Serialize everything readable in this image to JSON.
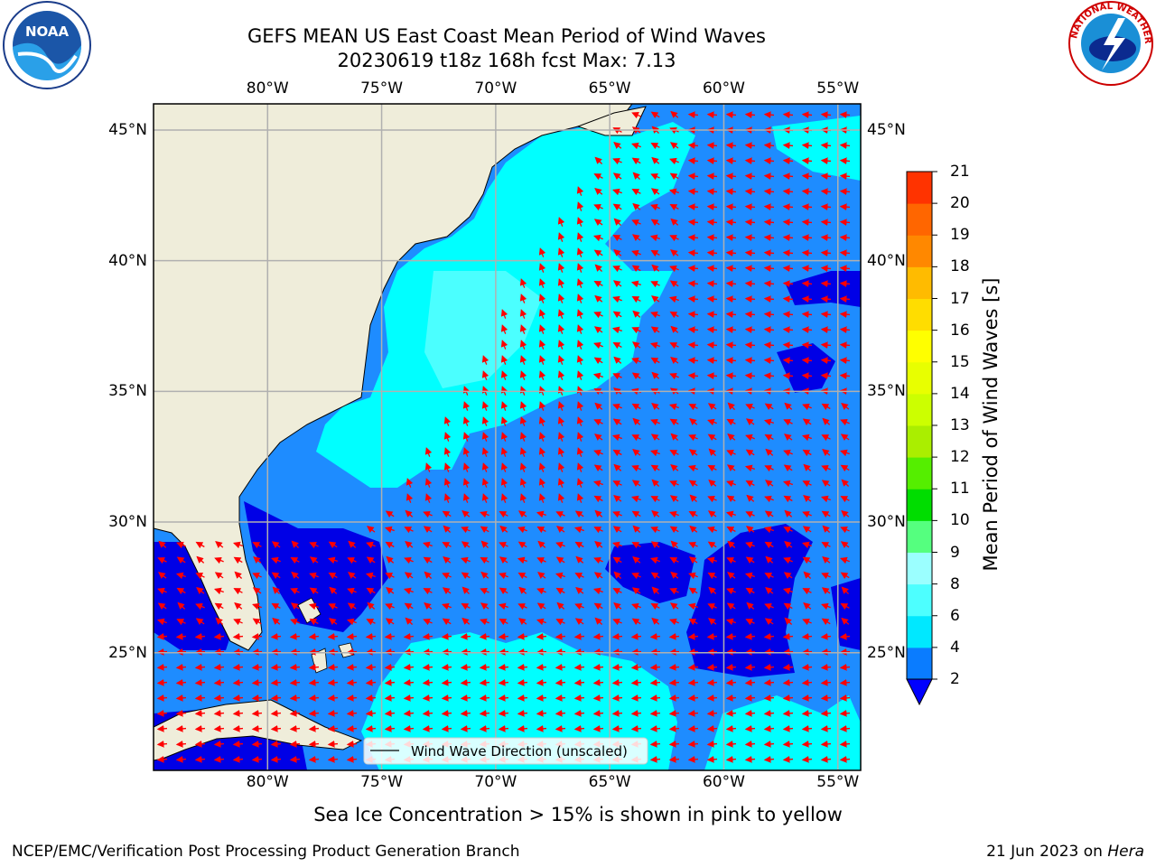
{
  "title": {
    "line1": "GEFS MEAN US East Coast Mean Period of Wind Waves",
    "line2": "20230619 t18z 168h fcst   Max: 7.13"
  },
  "logos": {
    "left": "NOAA",
    "right": "NATIONAL WEATHER SERVICE"
  },
  "map": {
    "lon_labels": [
      "80°W",
      "75°W",
      "70°W",
      "65°W",
      "60°W",
      "55°W"
    ],
    "lat_labels": [
      "45°N",
      "40°N",
      "35°N",
      "30°N",
      "25°N"
    ],
    "legend_label": "Wind Wave Direction (unscaled)",
    "colors": {
      "land": "#efedda",
      "level_2_4": "#1e8cff",
      "level_below_2": "#0000e6",
      "level_4_6": "#00ffff",
      "level_6_8": "#7dffff",
      "arrow": "#ff0000",
      "grid": "#b0b0b0"
    }
  },
  "colorbar": {
    "label": "Mean Period of Wind Waves [s]",
    "ticks": [
      "2",
      "4",
      "6",
      "8",
      "9",
      "10",
      "11",
      "12",
      "13",
      "14",
      "15",
      "16",
      "17",
      "18",
      "19",
      "20",
      "21"
    ],
    "colors": [
      "#0a7cff",
      "#00e8ff",
      "#4dffff",
      "#9bffff",
      "#55ff7f",
      "#00dd00",
      "#55ee00",
      "#aaee00",
      "#ccff00",
      "#e8ff00",
      "#ffff00",
      "#ffdd00",
      "#ffbb00",
      "#ff8800",
      "#ff6600",
      "#ff3300",
      "#ff0000"
    ],
    "extend_color": "#0000ff"
  },
  "chart_data": {
    "type": "heatmap",
    "title": "GEFS MEAN US East Coast Mean Period of Wind Waves",
    "subtitle": "20230619 t18z 168h fcst   Max: 7.13",
    "xlim": [
      -85,
      -54
    ],
    "ylim": [
      20.5,
      46
    ],
    "x_ticks": [
      "80°W",
      "75°W",
      "70°W",
      "65°W",
      "60°W",
      "55°W"
    ],
    "y_ticks": [
      "45°N",
      "40°N",
      "35°N",
      "30°N",
      "25°N"
    ],
    "colorbar_label": "Mean Period of Wind Waves [s]",
    "colorbar_range": [
      2,
      21
    ],
    "max_value": 7.13,
    "grid": true,
    "legend": "bottom-center"
  },
  "notes": {
    "sea_ice": "Sea Ice Concentration > 15% is shown in pink to yellow",
    "branch": "NCEP/EMC/Verification Post Processing Product Generation Branch",
    "date_prefix": "21 Jun 2023 on ",
    "machine": "Hera"
  }
}
